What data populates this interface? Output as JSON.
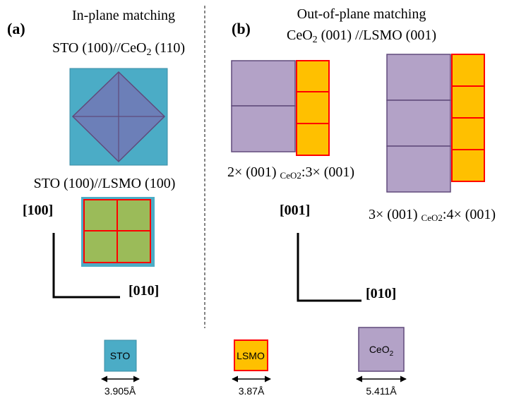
{
  "panel_a": {
    "label": "(a)",
    "title": "In-plane matching",
    "relation_1": {
      "main": "STO (100)//CeO",
      "sub": "2",
      "rest": " (110)"
    },
    "relation_2": "STO (100)//LSMO (100)",
    "axis_vertical": "[100]",
    "axis_horizontal": "[010]"
  },
  "panel_b": {
    "label": "(b)",
    "title": "Out-of-plane matching",
    "relation": {
      "main": "CeO",
      "sub": "2",
      "rest": " (001) //LSMO (001)"
    },
    "ratio_1": {
      "main": "2× (001) ",
      "sub": "CeO2",
      "rest": ":3× (001)"
    },
    "ratio_2": {
      "main": "3× (001) ",
      "sub": "CeO2",
      "rest": ":4× (001)"
    },
    "axis_vertical": "[001]",
    "axis_horizontal": "[010]"
  },
  "legend": [
    {
      "label": "STO",
      "size": "3.905Å"
    },
    {
      "label": "LSMO",
      "size": "3.87Å"
    },
    {
      "label": {
        "main": "CeO",
        "sub": "2"
      },
      "size": "5.411Å"
    }
  ]
}
